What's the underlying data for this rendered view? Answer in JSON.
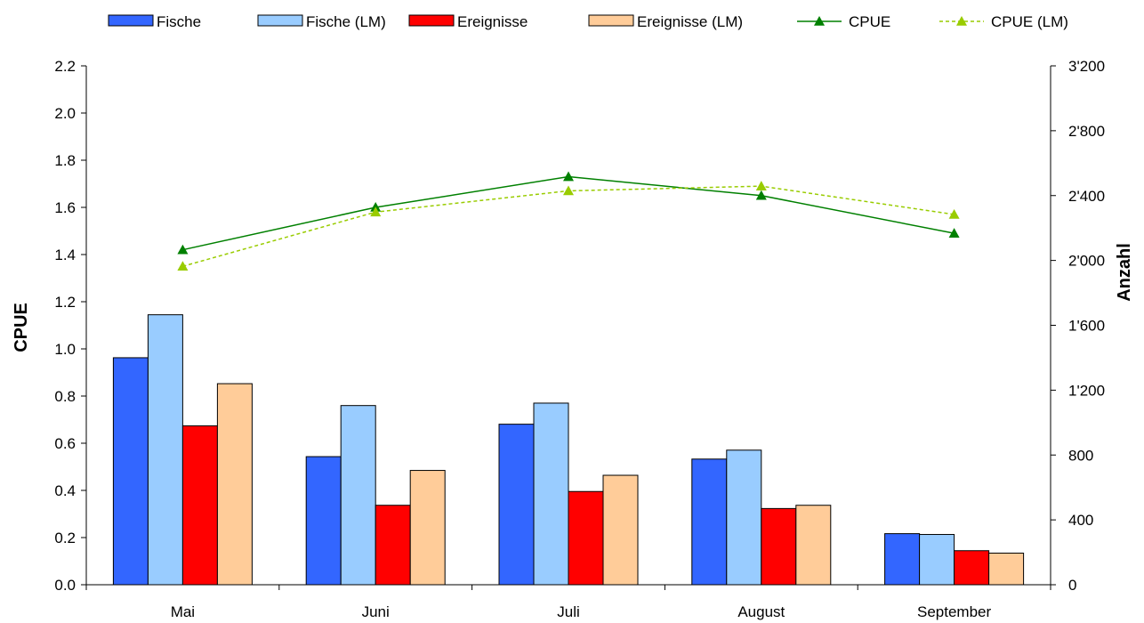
{
  "chart_data": {
    "type": "bar",
    "categories": [
      "Mai",
      "Juni",
      "Juli",
      "August",
      "September"
    ],
    "bar_series": [
      {
        "name": "Fische",
        "color": "#3366ff",
        "axis": "right",
        "values": [
          1400,
          790,
          990,
          775,
          315
        ]
      },
      {
        "name": "Fische (LM)",
        "color": "#99ccff",
        "axis": "right",
        "values": [
          1665,
          1105,
          1120,
          830,
          310
        ]
      },
      {
        "name": "Ereignisse",
        "color": "#ff0000",
        "axis": "right",
        "values": [
          980,
          490,
          575,
          470,
          210
        ]
      },
      {
        "name": "Ereignisse (LM)",
        "color": "#ffcc99",
        "axis": "right",
        "values": [
          1240,
          705,
          675,
          490,
          195
        ]
      }
    ],
    "line_series": [
      {
        "name": "CPUE",
        "color": "#008000",
        "axis": "left",
        "dashed": false,
        "values": [
          1.42,
          1.6,
          1.73,
          1.65,
          1.49
        ]
      },
      {
        "name": "CPUE (LM)",
        "color": "#99cc00",
        "axis": "left",
        "dashed": true,
        "values": [
          1.35,
          1.58,
          1.67,
          1.69,
          1.57
        ]
      }
    ],
    "ylabel": "CPUE",
    "y2label": "Anzahl",
    "ylim": [
      0,
      2.2
    ],
    "y2lim": [
      0,
      3200
    ],
    "yticks": [
      "0.0",
      "0.2",
      "0.4",
      "0.6",
      "0.8",
      "1.0",
      "1.2",
      "1.4",
      "1.6",
      "1.8",
      "2.0",
      "2.2"
    ],
    "y2ticks": [
      "0",
      "400",
      "800",
      "1'200",
      "1'600",
      "2'000",
      "2'400",
      "2'800",
      "3'200"
    ],
    "legend_position": "top",
    "grid": false
  }
}
